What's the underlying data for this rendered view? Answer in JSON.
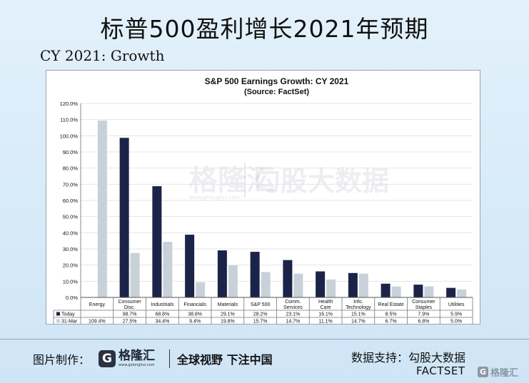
{
  "page_title": "标普500盈利增长2021年预期",
  "subtitle": "CY 2021: Growth",
  "watermark": {
    "logo_text": "格隆汇",
    "logo_url": "www.gelonghui.com",
    "partner_text": "勾股大数据"
  },
  "footer": {
    "credit_label": "图片制作：",
    "brand_name": "格隆汇",
    "brand_url": "www.gelonghui.com",
    "slogan": "全球视野 下注中国",
    "data_support_label": "数据支持：",
    "data_support_name": "勾股大数据",
    "source_name": "FACTSET",
    "corner_brand": "格隆汇"
  },
  "colors": {
    "today": "#1b2448",
    "mar31": "#c9d1d8",
    "grid": "#e4e4e4"
  },
  "chart_data": {
    "type": "bar",
    "title": "S&P 500 Earnings Growth: CY 2021",
    "subtitle": "(Source: FactSet)",
    "categories": [
      "Energy",
      "Consumer Disc.",
      "Industrials",
      "Financials",
      "Materials",
      "S&P 500",
      "Comm. Services",
      "Health Care",
      "Info. Technology",
      "Real Estate",
      "Consumer Staples",
      "Utilities"
    ],
    "category_lines": [
      [
        "Energy"
      ],
      [
        "Consumer",
        "Disc."
      ],
      [
        "Industrials"
      ],
      [
        "Financials"
      ],
      [
        "Materials"
      ],
      [
        "S&P 500"
      ],
      [
        "Comm.",
        "Services"
      ],
      [
        "Health",
        "Care"
      ],
      [
        "Info.",
        "Technology"
      ],
      [
        "Real Estate"
      ],
      [
        "Consumer",
        "Staples"
      ],
      [
        "Utilities"
      ]
    ],
    "series": [
      {
        "name": "Today",
        "values": [
          null,
          98.7,
          68.8,
          38.8,
          29.1,
          28.2,
          23.1,
          16.1,
          15.1,
          8.5,
          7.9,
          5.9
        ],
        "labels": [
          "",
          "98.7%",
          "68.8%",
          "38.8%",
          "29.1%",
          "28.2%",
          "23.1%",
          "16.1%",
          "15.1%",
          "8.5%",
          "7.9%",
          "5.9%"
        ]
      },
      {
        "name": "31-Mar",
        "values": [
          109.4,
          27.5,
          34.4,
          9.4,
          19.8,
          15.7,
          14.7,
          11.1,
          14.7,
          6.7,
          6.8,
          5.0
        ],
        "labels": [
          "109.4%",
          "27.5%",
          "34.4%",
          "9.4%",
          "19.8%",
          "15.7%",
          "14.7%",
          "11.1%",
          "14.7%",
          "6.7%",
          "6.8%",
          "5.0%"
        ]
      }
    ],
    "ylim": [
      0,
      120
    ],
    "yticks": [
      "0.0%",
      "10.0%",
      "20.0%",
      "30.0%",
      "40.0%",
      "50.0%",
      "60.0%",
      "70.0%",
      "80.0%",
      "90.0%",
      "100.0%",
      "110.0%",
      "120.0%"
    ],
    "grid": true,
    "legend": "data-table"
  }
}
